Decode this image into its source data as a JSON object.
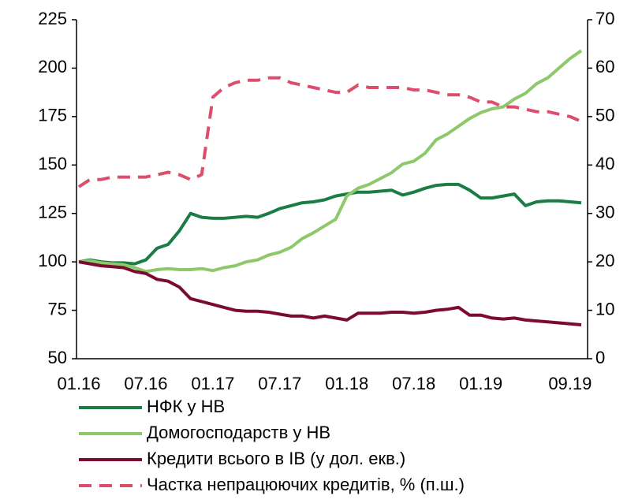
{
  "chart_data": {
    "type": "line",
    "categories": [
      "01.16",
      null,
      null,
      null,
      null,
      null,
      "07.16",
      null,
      null,
      null,
      null,
      null,
      "01.17",
      null,
      null,
      null,
      null,
      null,
      "07.17",
      null,
      null,
      null,
      null,
      null,
      "01.18",
      null,
      null,
      null,
      null,
      null,
      "07.18",
      null,
      null,
      null,
      null,
      null,
      "01.19",
      null,
      null,
      null,
      null,
      null,
      null,
      null,
      "09.19",
      null
    ],
    "ylim": [
      50,
      225
    ],
    "yticks": [
      50,
      75,
      100,
      125,
      150,
      175,
      200,
      225
    ],
    "y2lim": [
      0,
      70
    ],
    "y2ticks": [
      0,
      10,
      20,
      30,
      40,
      50,
      60,
      70
    ],
    "legend": "bottom",
    "series": [
      {
        "name": "НФК у НВ",
        "color": "#1b7d45",
        "dash": false,
        "values": [
          100,
          101,
          100,
          99.5,
          99.5,
          99,
          101,
          107,
          109,
          116,
          125,
          123,
          122.5,
          122.5,
          123,
          123.5,
          123,
          125,
          127.5,
          129,
          130.5,
          131,
          132,
          134,
          135,
          136,
          136,
          136.5,
          137,
          134.5,
          136,
          138,
          139.5,
          140,
          140,
          137,
          133,
          133,
          134,
          135,
          129,
          131,
          131.5,
          131.5,
          131,
          130.5
        ]
      },
      {
        "name": "Домогосподарств у НВ",
        "color": "#8dc96b",
        "dash": false,
        "values": [
          100,
          100.5,
          99.5,
          99,
          98.5,
          97,
          95,
          96,
          96.5,
          96,
          96,
          96.5,
          95.5,
          97,
          98,
          100,
          101,
          103.5,
          105,
          107.5,
          112,
          115,
          118.5,
          122,
          134,
          138,
          140,
          143,
          146,
          150.5,
          152,
          156,
          163,
          166,
          170,
          174,
          177,
          179,
          180,
          184,
          187,
          192,
          195,
          200,
          205,
          209
        ]
      },
      {
        "name": "Кредити всього в ІВ (у дол. екв.)",
        "color": "#7b0b30",
        "dash": false,
        "values": [
          100,
          99,
          98,
          97.5,
          97,
          95,
          94,
          91,
          90,
          87,
          81,
          79.5,
          78,
          76.5,
          75,
          74.5,
          74.5,
          74,
          73,
          72,
          72,
          71,
          72,
          71,
          70,
          73.5,
          73.5,
          73.5,
          74,
          74,
          73.5,
          74,
          75,
          75.5,
          76.5,
          72.5,
          72.5,
          71,
          70.5,
          71,
          70,
          69.5,
          69,
          68.5,
          68,
          67.5
        ]
      },
      {
        "name": "Частка непрацюючих кредитів, % (п.ш.)",
        "color": "#dc4e6b",
        "dash": true,
        "axis": "y2",
        "values": [
          35.5,
          37,
          37,
          37.5,
          37.5,
          37.5,
          37.5,
          38,
          38.5,
          38,
          37,
          38,
          54,
          56,
          57,
          57.5,
          57.5,
          58,
          58,
          57,
          56.5,
          56,
          55.5,
          55,
          55,
          56.5,
          56,
          56,
          56,
          56,
          55.5,
          55.5,
          55,
          54.5,
          54.5,
          54,
          53,
          53,
          52,
          52,
          51.5,
          51,
          51,
          50.5,
          50,
          49
        ]
      }
    ]
  }
}
